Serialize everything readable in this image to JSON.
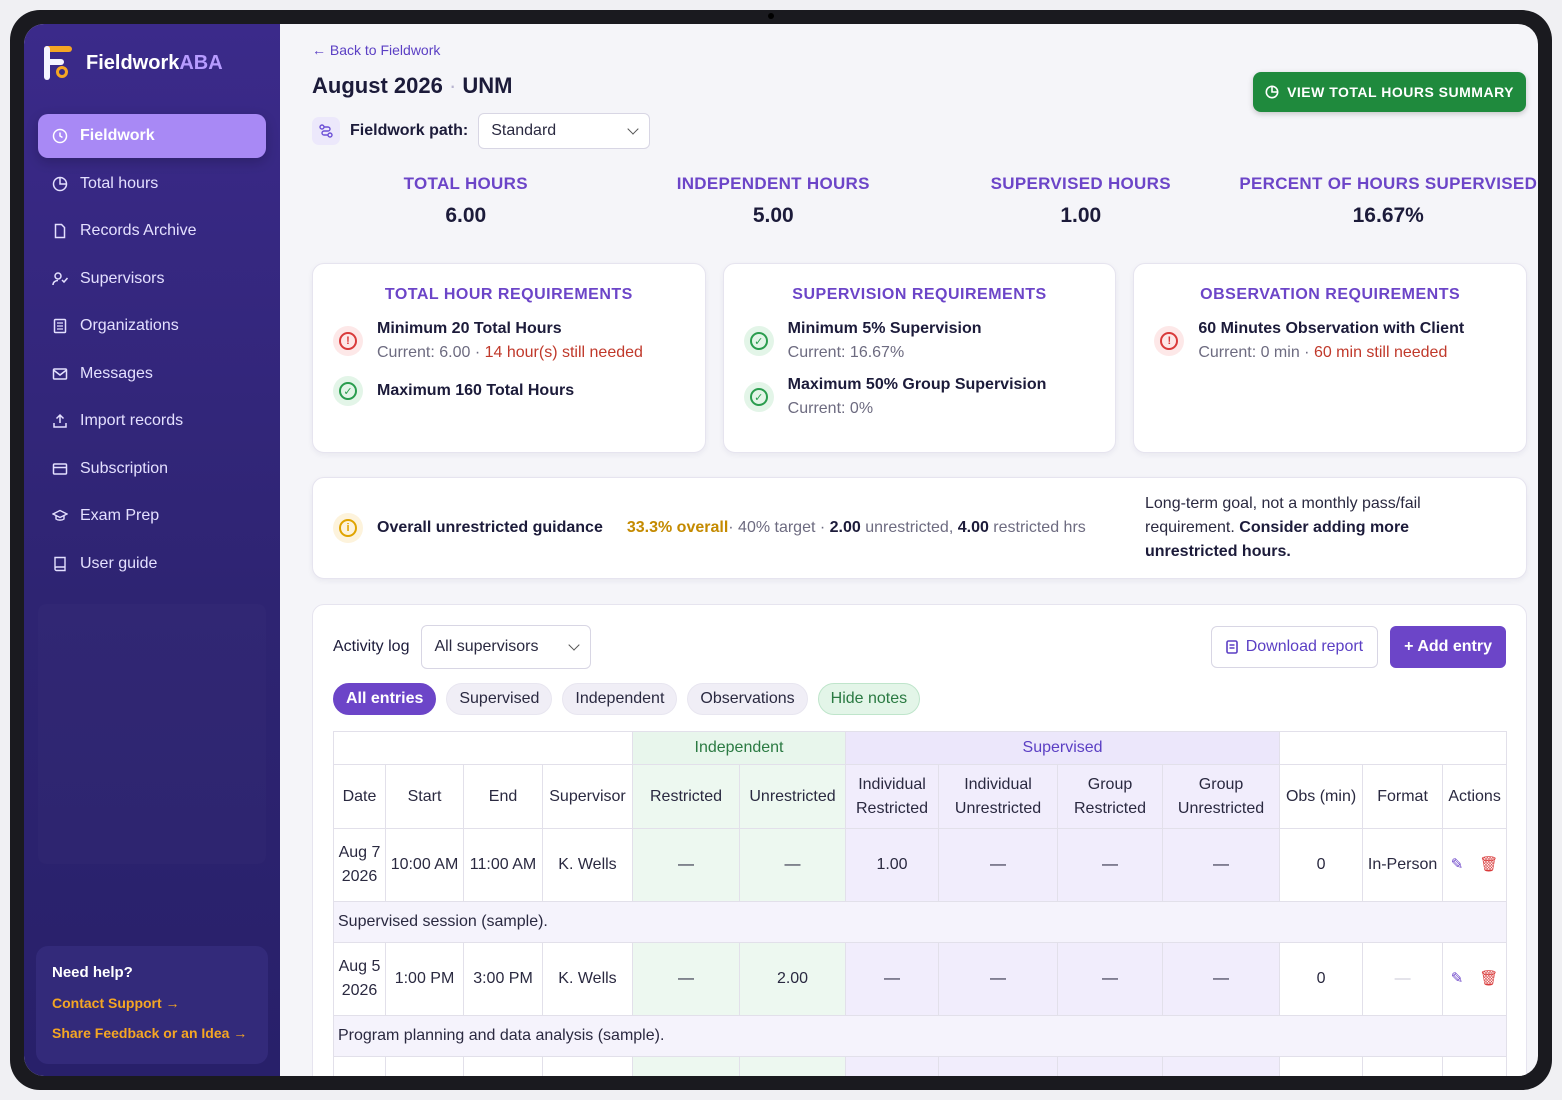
{
  "brand": {
    "name_main": "Fieldwork",
    "name_accent": "ABA"
  },
  "nav": {
    "items": [
      {
        "label": "Fieldwork",
        "icon": "clock-icon",
        "active": true
      },
      {
        "label": "Total hours",
        "icon": "pie-chart-icon"
      },
      {
        "label": "Records Archive",
        "icon": "file-icon"
      },
      {
        "label": "Supervisors",
        "icon": "user-check-icon"
      },
      {
        "label": "Organizations",
        "icon": "list-icon"
      },
      {
        "label": "Messages",
        "icon": "mail-icon"
      },
      {
        "label": "Import records",
        "icon": "upload-icon"
      },
      {
        "label": "Subscription",
        "icon": "credit-card-icon"
      },
      {
        "label": "Exam Prep",
        "icon": "graduation-cap-icon"
      },
      {
        "label": "User guide",
        "icon": "book-icon"
      }
    ]
  },
  "help": {
    "title": "Need help?",
    "contact": "Contact Support →",
    "feedback": "Share Feedback or an Idea →"
  },
  "header": {
    "back": "← Back to Fieldwork",
    "title_month": "August 2026",
    "title_sep": "·",
    "title_org": "UNM",
    "path_label": "Fieldwork path:",
    "path_value": "Standard",
    "summary_button": "VIEW TOTAL HOURS SUMMARY"
  },
  "stats": [
    {
      "label": "TOTAL HOURS",
      "value": "6.00"
    },
    {
      "label": "INDEPENDENT HOURS",
      "value": "5.00"
    },
    {
      "label": "SUPERVISED HOURS",
      "value": "1.00"
    },
    {
      "label": "PERCENT OF HOURS SUPERVISED",
      "value": "16.67%"
    }
  ],
  "cards": {
    "total": {
      "title": "TOTAL HOUR REQUIREMENTS",
      "r1_name": "Minimum 20 Total Hours",
      "r1_current": "Current: 6.00 · ",
      "r1_need": "14 hour(s) still needed",
      "r2_name": "Maximum 160 Total Hours"
    },
    "supervision": {
      "title": "SUPERVISION REQUIREMENTS",
      "r1_name": "Minimum 5% Supervision",
      "r1_current": "Current: 16.67%",
      "r2_name": "Maximum 50% Group Supervision",
      "r2_current": "Current: 0%"
    },
    "observation": {
      "title": "OBSERVATION REQUIREMENTS",
      "r1_name": "60 Minutes Observation with Client",
      "r1_current": "Current: 0 min · ",
      "r1_need": "60 min still needed"
    }
  },
  "guidance": {
    "title": "Overall unrestricted guidance",
    "pct": "33.3% overall",
    "target": " · 40% target · ",
    "unrestricted_val": "2.00",
    "unrestricted_lbl": " unrestricted, ",
    "restricted_val": "4.00",
    "restricted_lbl": " restricted hrs",
    "note_plain": "Long-term goal, not a monthly pass/fail requirement. ",
    "note_bold": "Consider adding more unrestricted hours."
  },
  "log": {
    "title": "Activity log",
    "supervisor_filter": "All supervisors",
    "download": "Download report",
    "add": "+ Add entry",
    "chips": [
      "All entries",
      "Supervised",
      "Independent",
      "Observations",
      "Hide notes"
    ],
    "group_independent": "Independent",
    "group_supervised": "Supervised",
    "columns": [
      "Date",
      "Start",
      "End",
      "Supervisor",
      "Restricted",
      "Unrestricted",
      "Individual Restricted",
      "Individual Unrestricted",
      "Group Restricted",
      "Group Unrestricted",
      "Obs (min)",
      "Format",
      "Actions"
    ],
    "rows": [
      {
        "date": "Aug 7 2026",
        "start": "10:00 AM",
        "end": "11:00 AM",
        "supervisor": "K. Wells",
        "ind_r": "—",
        "ind_u": "—",
        "sup_ir": "1.00",
        "sup_iu": "—",
        "sup_gr": "—",
        "sup_gu": "—",
        "obs": "0",
        "format": "In-Person",
        "note": "Supervised session (sample)."
      },
      {
        "date": "Aug 5 2026",
        "start": "1:00 PM",
        "end": "3:00 PM",
        "supervisor": "K. Wells",
        "ind_r": "—",
        "ind_u": "2.00",
        "sup_ir": "—",
        "sup_iu": "—",
        "sup_gr": "—",
        "sup_gu": "—",
        "obs": "0",
        "format": "—",
        "note": "Program planning and data analysis (sample)."
      }
    ]
  }
}
